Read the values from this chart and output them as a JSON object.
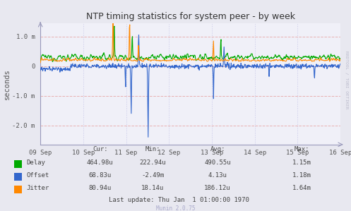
{
  "title": "NTP timing statistics for system peer - by week",
  "ylabel": "seconds",
  "bg_color": "#e8e8f0",
  "plot_bg_color": "#f0f0f8",
  "grid_color_dotted": "#c8c8e8",
  "grid_color_pink": "#e8b0b0",
  "line_colors": {
    "delay": "#00aa00",
    "offset": "#3366cc",
    "jitter": "#ff8800"
  },
  "ylim": [
    -0.00265,
    0.00145
  ],
  "yticks": [
    -0.002,
    -0.001,
    0.0,
    0.001
  ],
  "ytick_labels": [
    "-2.0 m",
    "-1.0 m",
    "0",
    "1.0 m"
  ],
  "dates": [
    "09 Sep",
    "10 Sep",
    "11 Sep",
    "12 Sep",
    "13 Sep",
    "14 Sep",
    "15 Sep",
    "16 Sep"
  ],
  "n_points": 800,
  "table_headers": [
    "Cur:",
    "Min:",
    "Avg:",
    "Max:"
  ],
  "table_rows": [
    [
      "Delay",
      "464.98u",
      "222.94u",
      "490.55u",
      "1.15m"
    ],
    [
      "Offset",
      "68.83u",
      "-2.49m",
      "4.13u",
      "1.18m"
    ],
    [
      "Jitter",
      "80.94u",
      "18.14u",
      "186.12u",
      "1.64m"
    ]
  ],
  "last_update": "Last update: Thu Jan  1 01:00:00 1970",
  "munin_version": "Munin 2.0.75",
  "rrdtool_text": "RRDTOOL / TOBI OETIKER"
}
